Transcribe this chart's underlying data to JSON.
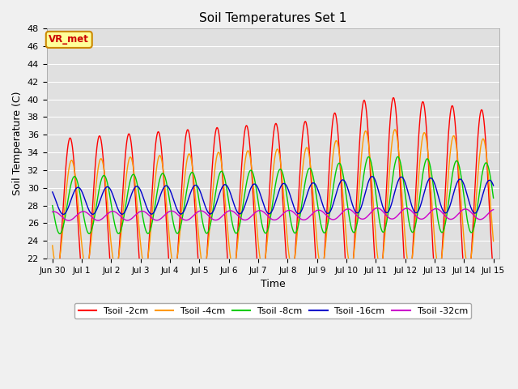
{
  "title": "Soil Temperatures Set 1",
  "xlabel": "Time",
  "ylabel": "Soil Temperature (C)",
  "ylim": [
    22,
    48
  ],
  "yticks": [
    22,
    24,
    26,
    28,
    30,
    32,
    34,
    36,
    38,
    40,
    42,
    44,
    46,
    48
  ],
  "colors": {
    "Tsoil -2cm": "#ff0000",
    "Tsoil -4cm": "#ff9900",
    "Tsoil -8cm": "#00cc00",
    "Tsoil -16cm": "#0000cc",
    "Tsoil -32cm": "#cc00cc"
  },
  "fig_bg": "#f0f0f0",
  "axes_bg": "#e0e0e0",
  "grid_color": "#ffffff",
  "vr_met_label": "VR_met",
  "vr_met_bg": "#ffff99",
  "vr_met_border": "#cc8800",
  "vr_met_text_color": "#cc0000",
  "phases": {
    "t2": 0.35,
    "t4": 0.4,
    "t8": 0.5,
    "t16": 0.62,
    "t32": 0.8
  },
  "base_temps": {
    "t2": 27.0,
    "t4": 27.0,
    "t8": 28.0,
    "t16": 28.5,
    "t32": 26.8
  },
  "amplitudes": {
    "t2": 8.5,
    "t4": 6.0,
    "t8": 3.2,
    "t16": 1.5,
    "t32": 0.5
  }
}
